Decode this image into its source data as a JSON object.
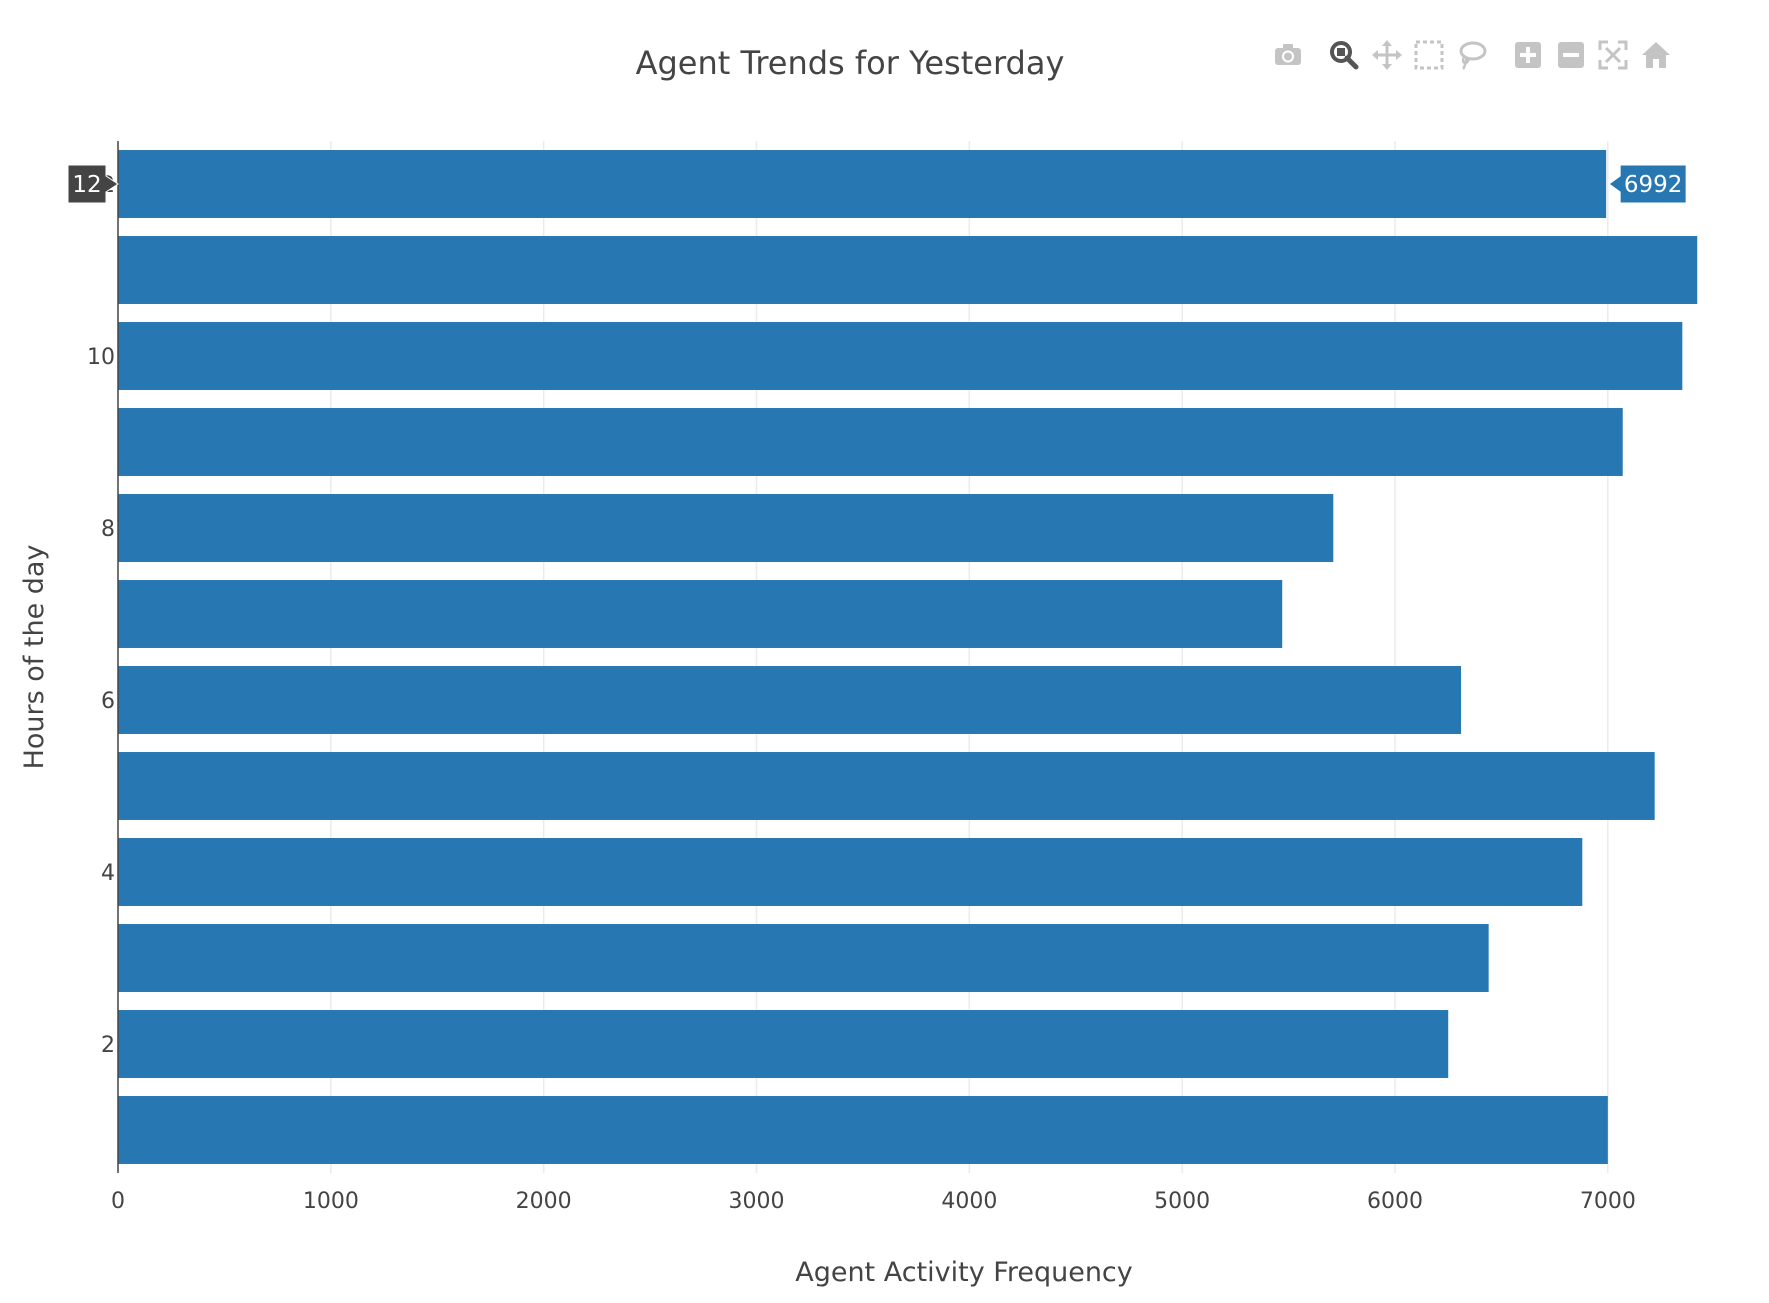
{
  "chart_data": {
    "type": "bar",
    "orientation": "horizontal",
    "title": "Agent Trends for Yesterday",
    "xlabel": "Agent Activity Frequency",
    "ylabel": "Hours of the day",
    "xlim": [
      0,
      7480
    ],
    "ylim": [
      0.5,
      12.5
    ],
    "x_ticks": [
      0,
      1000,
      2000,
      3000,
      4000,
      5000,
      6000,
      7000
    ],
    "y_ticks": [
      2,
      4,
      6,
      8,
      10,
      12
    ],
    "categories": [
      1,
      2,
      3,
      4,
      5,
      6,
      7,
      8,
      9,
      10,
      11,
      12
    ],
    "values": [
      7000,
      6250,
      6440,
      6880,
      7220,
      6310,
      5470,
      5710,
      7070,
      7350,
      7420,
      6992
    ],
    "bar_color": "#2677b2",
    "grid": true,
    "hover": {
      "category": "12",
      "value": "6992"
    }
  },
  "modebar": {
    "icons": [
      "camera-icon",
      "zoom-icon",
      "pan-icon",
      "box-select-icon",
      "lasso-select-icon",
      "zoom-in-icon",
      "zoom-out-icon",
      "autoscale-icon",
      "reset-axes-home-icon"
    ]
  }
}
